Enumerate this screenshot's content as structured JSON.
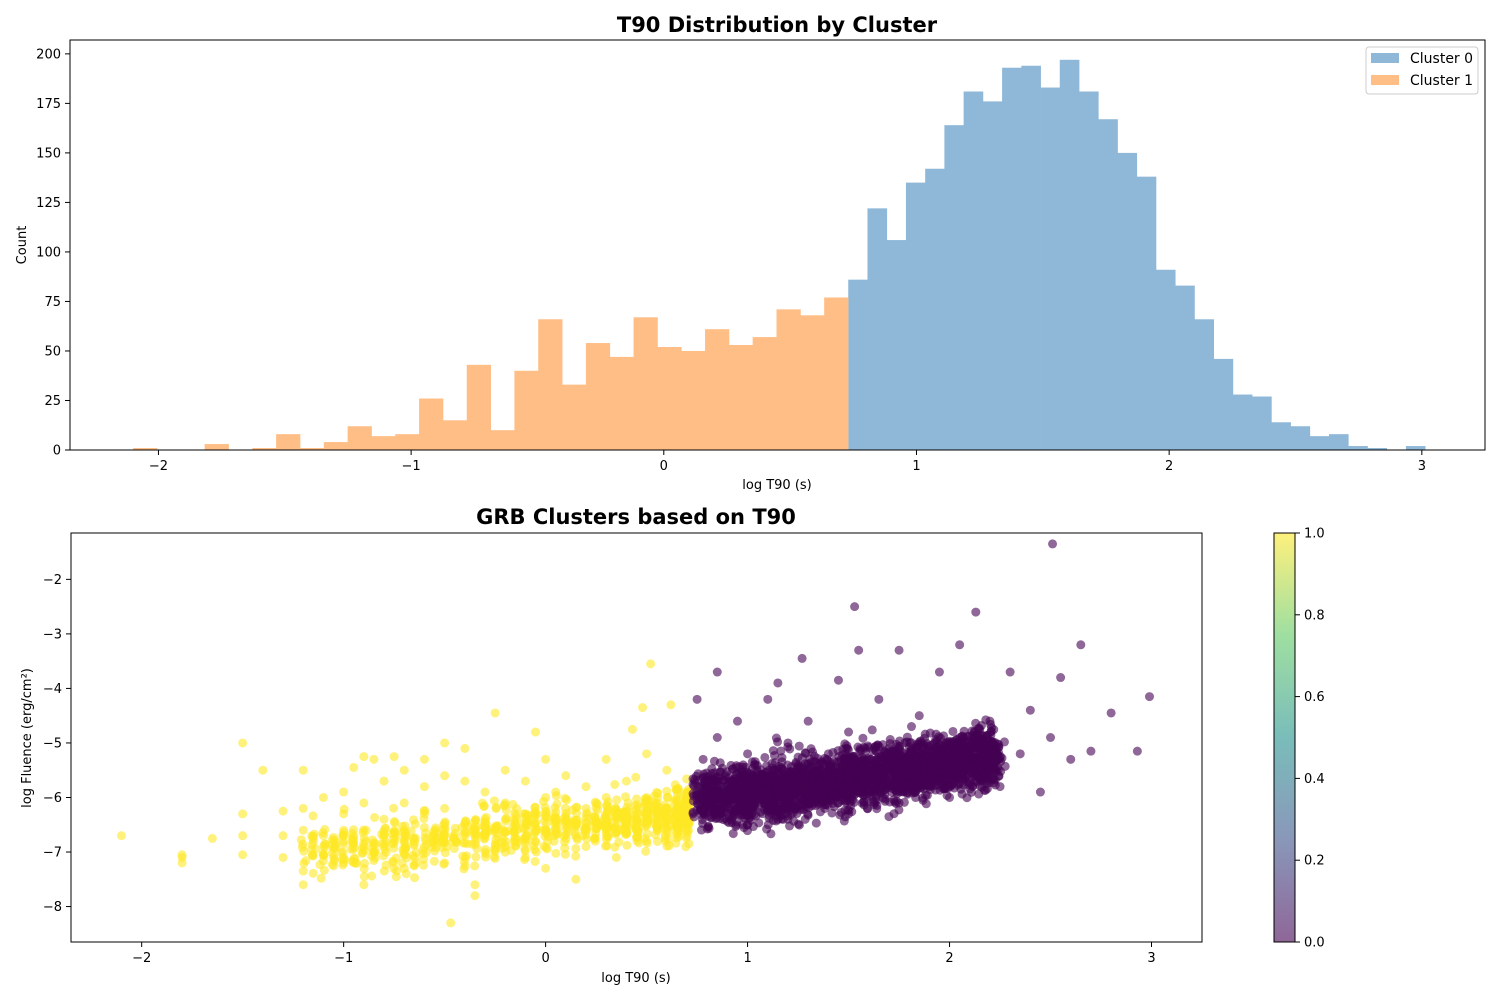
{
  "chart_data": [
    {
      "type": "bar",
      "subtype": "histogram",
      "title": "T90 Distribution by Cluster",
      "xlabel": "log T90 (s)",
      "ylabel": "Count",
      "xlim": [
        -2.35,
        3.25
      ],
      "ylim": [
        0,
        207
      ],
      "xticks": [
        -2,
        -1,
        0,
        1,
        2,
        3
      ],
      "xtick_labels": [
        "−2",
        "−1",
        "0",
        "1",
        "2",
        "3"
      ],
      "yticks": [
        0,
        25,
        50,
        75,
        100,
        125,
        150,
        175,
        200
      ],
      "grid": false,
      "legend_position": "top-right",
      "series": [
        {
          "name": "Cluster 0",
          "color": "#8fb8d8",
          "bin_start": 0.73,
          "bin_width": 0.0761,
          "values": [
            86,
            122,
            106,
            135,
            142,
            164,
            181,
            176,
            193,
            194,
            183,
            197,
            181,
            167,
            150,
            138,
            91,
            83,
            66,
            46,
            28,
            27,
            14,
            12,
            7,
            8,
            2,
            1,
            0,
            2
          ]
        },
        {
          "name": "Cluster 1",
          "color": "#ffbe86",
          "bin_start": -2.1,
          "bin_width": 0.0943,
          "values": [
            1,
            0,
            0,
            3,
            0,
            1,
            8,
            1,
            4,
            12,
            7,
            8,
            26,
            15,
            43,
            10,
            40,
            66,
            33,
            54,
            47,
            67,
            52,
            50,
            61,
            53,
            57,
            71,
            68,
            77
          ]
        }
      ]
    },
    {
      "type": "scatter",
      "title": "GRB Clusters based on T90",
      "xlabel": "log T90 (s)",
      "ylabel": "log Fluence (erg/cm²)",
      "xlim": [
        -2.35,
        3.25
      ],
      "ylim": [
        -8.65,
        -1.15
      ],
      "xticks": [
        -2,
        -1,
        0,
        1,
        2,
        3
      ],
      "xtick_labels": [
        "−2",
        "−1",
        "0",
        "1",
        "2",
        "3"
      ],
      "yticks": [
        -8,
        -7,
        -6,
        -5,
        -4,
        -3,
        -2
      ],
      "ytick_labels": [
        "−8",
        "−7",
        "−6",
        "−5",
        "−4",
        "−3",
        "−2"
      ],
      "grid": false,
      "colormap": "viridis",
      "colorbar": {
        "range": [
          0.0,
          1.0
        ],
        "ticks": [
          "0.0",
          "0.2",
          "0.4",
          "0.6",
          "0.8",
          "1.0"
        ],
        "colors": [
          "#440154",
          "#3b528b",
          "#21918c",
          "#5ec962",
          "#fde725"
        ]
      },
      "series": [
        {
          "cluster": 1,
          "color": "#fde725",
          "points": [
            [
              -2.1,
              -6.7
            ],
            [
              -1.8,
              -7.1
            ],
            [
              -1.8,
              -7.2
            ],
            [
              -1.8,
              -7.05
            ],
            [
              -1.65,
              -6.75
            ],
            [
              -1.5,
              -5.0
            ],
            [
              -1.5,
              -6.3
            ],
            [
              -1.5,
              -6.7
            ],
            [
              -1.5,
              -7.05
            ],
            [
              -1.4,
              -5.5
            ],
            [
              -1.3,
              -6.25
            ],
            [
              -1.3,
              -6.7
            ],
            [
              -1.3,
              -7.1
            ],
            [
              -1.2,
              -5.5
            ],
            [
              -1.2,
              -6.2
            ],
            [
              -1.2,
              -6.6
            ],
            [
              -1.2,
              -7.35
            ],
            [
              -1.2,
              -7.6
            ],
            [
              -1.1,
              -6.0
            ],
            [
              -1.1,
              -6.7
            ],
            [
              -1.1,
              -7.05
            ],
            [
              -1.0,
              -5.9
            ],
            [
              -1.0,
              -6.3
            ],
            [
              -1.0,
              -6.6
            ],
            [
              -1.0,
              -7.2
            ],
            [
              -0.95,
              -5.45
            ],
            [
              -0.9,
              -5.25
            ],
            [
              -0.9,
              -6.1
            ],
            [
              -0.9,
              -6.9
            ],
            [
              -0.9,
              -7.6
            ],
            [
              -0.85,
              -5.3
            ],
            [
              -0.8,
              -5.7
            ],
            [
              -0.8,
              -6.4
            ],
            [
              -0.8,
              -6.9
            ],
            [
              -0.75,
              -5.25
            ],
            [
              -0.7,
              -5.5
            ],
            [
              -0.7,
              -6.1
            ],
            [
              -0.7,
              -6.6
            ],
            [
              -0.7,
              -7.3
            ],
            [
              -0.6,
              -5.3
            ],
            [
              -0.6,
              -5.8
            ],
            [
              -0.6,
              -6.3
            ],
            [
              -0.6,
              -6.9
            ],
            [
              -0.5,
              -5.0
            ],
            [
              -0.5,
              -5.6
            ],
            [
              -0.5,
              -6.2
            ],
            [
              -0.5,
              -6.7
            ],
            [
              -0.5,
              -7.2
            ],
            [
              -0.47,
              -8.3
            ],
            [
              -0.4,
              -5.1
            ],
            [
              -0.4,
              -5.7
            ],
            [
              -0.4,
              -6.5
            ],
            [
              -0.35,
              -7.6
            ],
            [
              -0.35,
              -7.8
            ],
            [
              -0.3,
              -5.9
            ],
            [
              -0.3,
              -6.4
            ],
            [
              -0.3,
              -7.0
            ],
            [
              -0.25,
              -4.45
            ],
            [
              -0.2,
              -5.5
            ],
            [
              -0.2,
              -6.1
            ],
            [
              -0.2,
              -6.8
            ],
            [
              -0.1,
              -5.7
            ],
            [
              -0.1,
              -6.3
            ],
            [
              -0.1,
              -7.1
            ],
            [
              -0.05,
              -4.8
            ],
            [
              0.0,
              -5.3
            ],
            [
              0.0,
              -6.0
            ],
            [
              0.0,
              -6.6
            ],
            [
              0.0,
              -7.3
            ],
            [
              0.05,
              -5.9
            ],
            [
              0.1,
              -5.6
            ],
            [
              0.1,
              -6.5
            ],
            [
              0.15,
              -7.5
            ],
            [
              0.2,
              -5.8
            ],
            [
              0.2,
              -6.2
            ],
            [
              0.2,
              -6.9
            ],
            [
              0.3,
              -5.3
            ],
            [
              0.3,
              -6.0
            ],
            [
              0.3,
              -6.6
            ],
            [
              0.35,
              -7.1
            ],
            [
              0.4,
              -5.7
            ],
            [
              0.4,
              -6.4
            ],
            [
              0.43,
              -4.75
            ],
            [
              0.48,
              -4.35
            ],
            [
              0.5,
              -5.2
            ],
            [
              0.5,
              -6.0
            ],
            [
              0.5,
              -6.8
            ],
            [
              0.52,
              -3.55
            ],
            [
              0.6,
              -5.5
            ],
            [
              0.6,
              -6.2
            ],
            [
              0.62,
              -4.3
            ],
            [
              0.7,
              -5.9
            ],
            [
              0.7,
              -6.4
            ]
          ]
        },
        {
          "cluster": 0,
          "color": "#440154",
          "points": [
            [
              0.73,
              -6.3
            ],
            [
              0.75,
              -4.2
            ],
            [
              0.78,
              -5.3
            ],
            [
              0.8,
              -5.8
            ],
            [
              0.85,
              -3.7
            ],
            [
              0.85,
              -4.9
            ],
            [
              0.9,
              -6.1
            ],
            [
              0.95,
              -4.6
            ],
            [
              1.0,
              -5.2
            ],
            [
              1.0,
              -6.5
            ],
            [
              1.05,
              -5.7
            ],
            [
              1.1,
              -4.2
            ],
            [
              1.1,
              -6.2
            ],
            [
              1.15,
              -3.9
            ],
            [
              1.2,
              -5.0
            ],
            [
              1.2,
              -6.4
            ],
            [
              1.25,
              -5.5
            ],
            [
              1.27,
              -3.45
            ],
            [
              1.3,
              -4.6
            ],
            [
              1.35,
              -6.1
            ],
            [
              1.4,
              -5.2
            ],
            [
              1.45,
              -3.85
            ],
            [
              1.5,
              -4.8
            ],
            [
              1.5,
              -6.3
            ],
            [
              1.53,
              -2.5
            ],
            [
              1.55,
              -3.3
            ],
            [
              1.6,
              -5.6
            ],
            [
              1.65,
              -4.2
            ],
            [
              1.7,
              -5.1
            ],
            [
              1.7,
              -6.35
            ],
            [
              1.75,
              -3.3
            ],
            [
              1.8,
              -5.8
            ],
            [
              1.85,
              -4.5
            ],
            [
              1.9,
              -5.3
            ],
            [
              1.95,
              -3.7
            ],
            [
              2.0,
              -6.0
            ],
            [
              2.05,
              -4.9
            ],
            [
              2.05,
              -3.2
            ],
            [
              2.1,
              -5.5
            ],
            [
              2.13,
              -2.6
            ],
            [
              2.2,
              -4.6
            ],
            [
              2.25,
              -5.8
            ],
            [
              2.3,
              -3.7
            ],
            [
              2.35,
              -5.2
            ],
            [
              2.4,
              -4.4
            ],
            [
              2.45,
              -5.9
            ],
            [
              2.5,
              -4.9
            ],
            [
              2.51,
              -1.35
            ],
            [
              2.55,
              -3.8
            ],
            [
              2.6,
              -5.3
            ],
            [
              2.65,
              -3.2
            ],
            [
              2.7,
              -5.15
            ],
            [
              2.8,
              -4.45
            ],
            [
              2.93,
              -5.15
            ],
            [
              2.99,
              -4.15
            ]
          ]
        }
      ]
    }
  ]
}
